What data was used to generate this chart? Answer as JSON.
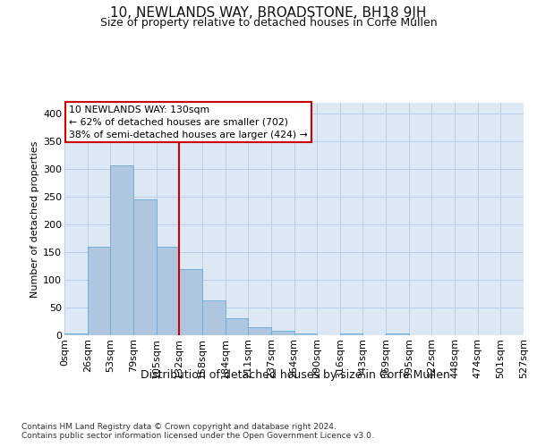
{
  "title": "10, NEWLANDS WAY, BROADSTONE, BH18 9JH",
  "subtitle": "Size of property relative to detached houses in Corfe Mullen",
  "xlabel": "Distribution of detached houses by size in Corfe Mullen",
  "ylabel": "Number of detached properties",
  "footnote1": "Contains HM Land Registry data © Crown copyright and database right 2024.",
  "footnote2": "Contains public sector information licensed under the Open Government Licence v3.0.",
  "bin_labels": [
    "0sqm",
    "26sqm",
    "53sqm",
    "79sqm",
    "105sqm",
    "132sqm",
    "158sqm",
    "184sqm",
    "211sqm",
    "237sqm",
    "264sqm",
    "290sqm",
    "316sqm",
    "343sqm",
    "369sqm",
    "395sqm",
    "422sqm",
    "448sqm",
    "474sqm",
    "501sqm",
    "527sqm"
  ],
  "bar_values": [
    3,
    160,
    307,
    246,
    160,
    120,
    63,
    30,
    15,
    8,
    3,
    0,
    4,
    0,
    4,
    0,
    0,
    0,
    0,
    0
  ],
  "bar_color": "#aec6e0",
  "bar_edge_color": "#6aaad4",
  "reference_line_label": "10 NEWLANDS WAY: 130sqm",
  "annotation_line1": "← 62% of detached houses are smaller (702)",
  "annotation_line2": "38% of semi-detached houses are larger (424) →",
  "annotation_box_color": "#ffffff",
  "annotation_box_edge": "#cc0000",
  "ref_line_color": "#cc0000",
  "ylim": [
    0,
    420
  ],
  "yticks": [
    0,
    50,
    100,
    150,
    200,
    250,
    300,
    350,
    400
  ],
  "plot_bg_color": "#dce9f5",
  "grid_color": "#b8cfe8",
  "title_fontsize": 11,
  "subtitle_fontsize": 9,
  "ylabel_fontsize": 8,
  "xlabel_fontsize": 9,
  "tick_fontsize": 8,
  "footnote_fontsize": 6.5
}
